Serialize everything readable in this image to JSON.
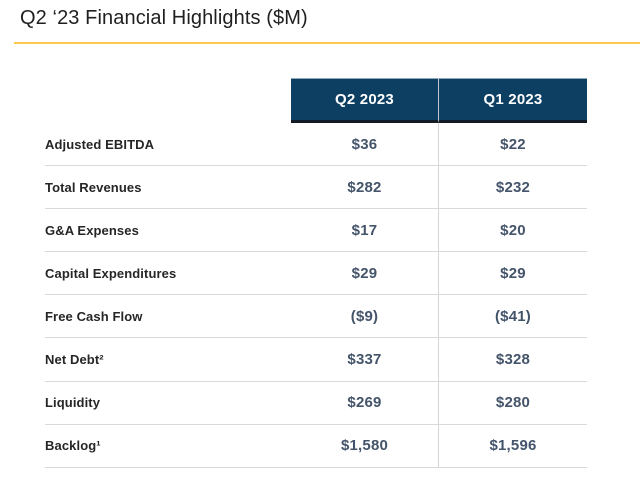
{
  "slide": {
    "title": "Q2 ‘23 Financial Highlights ($M)"
  },
  "colors": {
    "title_underline": "#FCC94F",
    "header_background": "#0D3F63",
    "header_text": "#FFFFFF",
    "value_text": "#44546A",
    "label_text": "#262626",
    "row_divider": "#D9D9D9"
  },
  "table": {
    "columns": [
      {
        "label": "Q2 2023"
      },
      {
        "label": "Q1 2023"
      }
    ],
    "rows": [
      {
        "label": "Adjusted EBITDA",
        "q2_2023": "$36",
        "q1_2023": "$22"
      },
      {
        "label": "Total Revenues",
        "q2_2023": "$282",
        "q1_2023": "$232"
      },
      {
        "label": "G&A Expenses",
        "q2_2023": "$17",
        "q1_2023": "$20"
      },
      {
        "label": "Capital Expenditures",
        "q2_2023": "$29",
        "q1_2023": "$29"
      },
      {
        "label": "Free Cash Flow",
        "q2_2023": "($9)",
        "q1_2023": "($41)"
      },
      {
        "label": "Net Debt²",
        "q2_2023": "$337",
        "q1_2023": "$328"
      },
      {
        "label": "Liquidity",
        "q2_2023": "$269",
        "q1_2023": "$280"
      },
      {
        "label": "Backlog¹",
        "q2_2023": "$1,580",
        "q1_2023": "$1,596"
      }
    ]
  }
}
